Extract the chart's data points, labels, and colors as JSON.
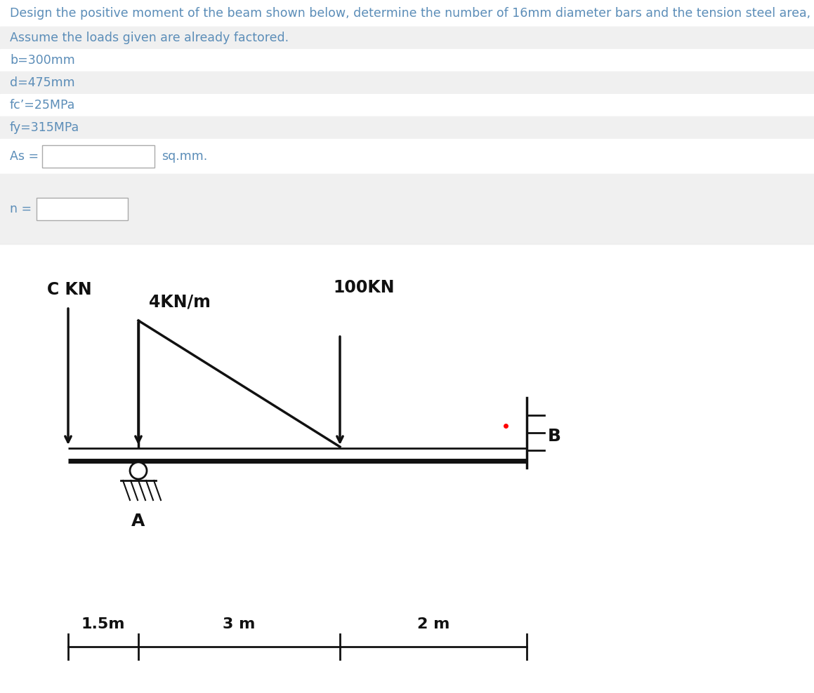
{
  "title_line1": "Design the positive moment of the beam shown below, determine the number of 16mm diameter bars and the tension steel area, As.",
  "title_line2": "Assume the loads given are already factored.",
  "param1": "b=300mm",
  "param2": "d=475mm",
  "param3": "fc’=25MPa",
  "param4": "fy=315MPa",
  "as_label": "As = ",
  "as_unit": "sq.mm.",
  "n_label": "n = ",
  "text_color": "#5b8db8",
  "dark_text": "#444444",
  "row_white": "#ffffff",
  "row_gray": "#f0f0f0",
  "separator_color": "#d0d0d0",
  "diagram_bg": "#8a8f96",
  "beam_color": "#111111",
  "fig_width": 11.59,
  "fig_height": 9.88,
  "dpi": 100,
  "ckn_label": "C KN",
  "dist_label": "4KN/m",
  "pt_label": "100KN",
  "a_label": "A",
  "b_label": "B",
  "dim1_label": "1.5m",
  "dim2_label": "3 m",
  "dim3_label": "2 m"
}
